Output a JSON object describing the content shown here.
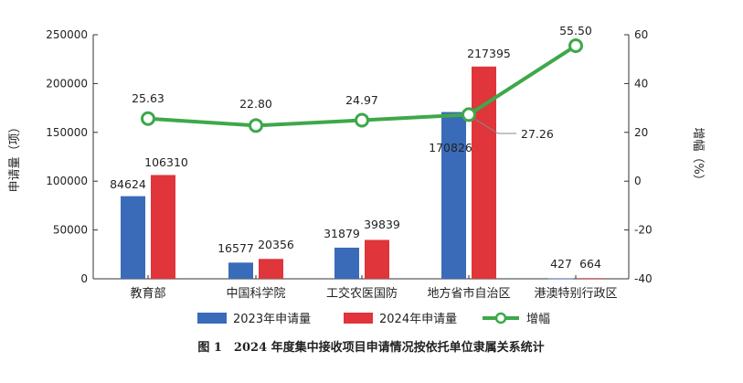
{
  "chart_data": {
    "type": "bar+line",
    "categories": [
      "教育部",
      "中国科学院",
      "工交农医国防",
      "地方省市自治区",
      "港澳特别行政区"
    ],
    "series": [
      {
        "name": "2023年申请量",
        "type": "bar",
        "axis": "left",
        "color": "#3a6bb8",
        "values": [
          84624,
          16577,
          31879,
          170826,
          427
        ],
        "labels": [
          "84624",
          "16577",
          "31879",
          "170826",
          "427"
        ]
      },
      {
        "name": "2024年申请量",
        "type": "bar",
        "axis": "left",
        "color": "#e0353a",
        "values": [
          106310,
          20356,
          39839,
          217395,
          664
        ],
        "labels": [
          "106310",
          "20356",
          "39839",
          "217395",
          "664"
        ]
      },
      {
        "name": "增幅",
        "type": "line",
        "axis": "right",
        "color": "#3ea84a",
        "values": [
          25.63,
          22.8,
          24.97,
          27.26,
          55.5
        ],
        "labels": [
          "25.63",
          "22.80",
          "24.97",
          "27.26",
          "55.50"
        ]
      }
    ],
    "ylabel_left": "申请量（项）",
    "ylabel_right": "增幅（%）",
    "ylim_left": [
      0,
      250000
    ],
    "yticks_left": [
      "0",
      "50000",
      "100000",
      "150000",
      "200000",
      "250000"
    ],
    "ylim_right": [
      -40,
      60
    ],
    "yticks_right": [
      "-40",
      "-20",
      "0",
      "20",
      "40",
      "60"
    ],
    "grid": false,
    "legend_position": "bottom",
    "caption": "图 1　2024 年度集中接收项目申请情况按依托单位隶属关系统计"
  }
}
